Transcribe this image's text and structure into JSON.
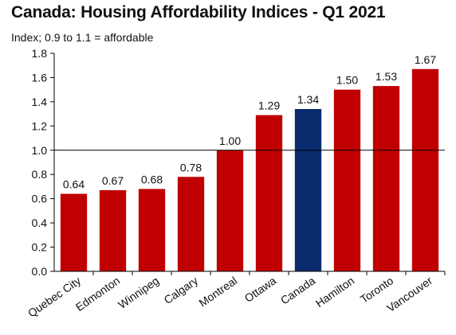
{
  "chart_data": {
    "type": "bar",
    "title": "Canada: Housing Affordability Indices - Q1 2021",
    "subtitle": "Index; 0.9 to 1.1 = affordable",
    "categories": [
      "Quebec City",
      "Edmonton",
      "Winnipeg",
      "Calgary",
      "Montreal",
      "Ottawa",
      "Canada",
      "Hamilton",
      "Toronto",
      "Vancouver"
    ],
    "values": [
      0.64,
      0.67,
      0.68,
      0.78,
      1.0,
      1.29,
      1.34,
      1.5,
      1.53,
      1.67
    ],
    "data_labels": [
      "0.64",
      "0.67",
      "0.68",
      "0.78",
      "1.00",
      "1.29",
      "1.34",
      "1.50",
      "1.53",
      "1.67"
    ],
    "ylim": [
      0,
      1.8
    ],
    "yticks": [
      "0.0",
      "0.2",
      "0.4",
      "0.6",
      "0.8",
      "1.0",
      "1.2",
      "1.4",
      "1.6",
      "1.8"
    ],
    "reference_line": 1.0,
    "grid": false,
    "colors": {
      "default_bar": "#c00000",
      "highlight_bar": "#0a2a6e",
      "highlight_category": "Canada",
      "axis": "#000000"
    }
  }
}
